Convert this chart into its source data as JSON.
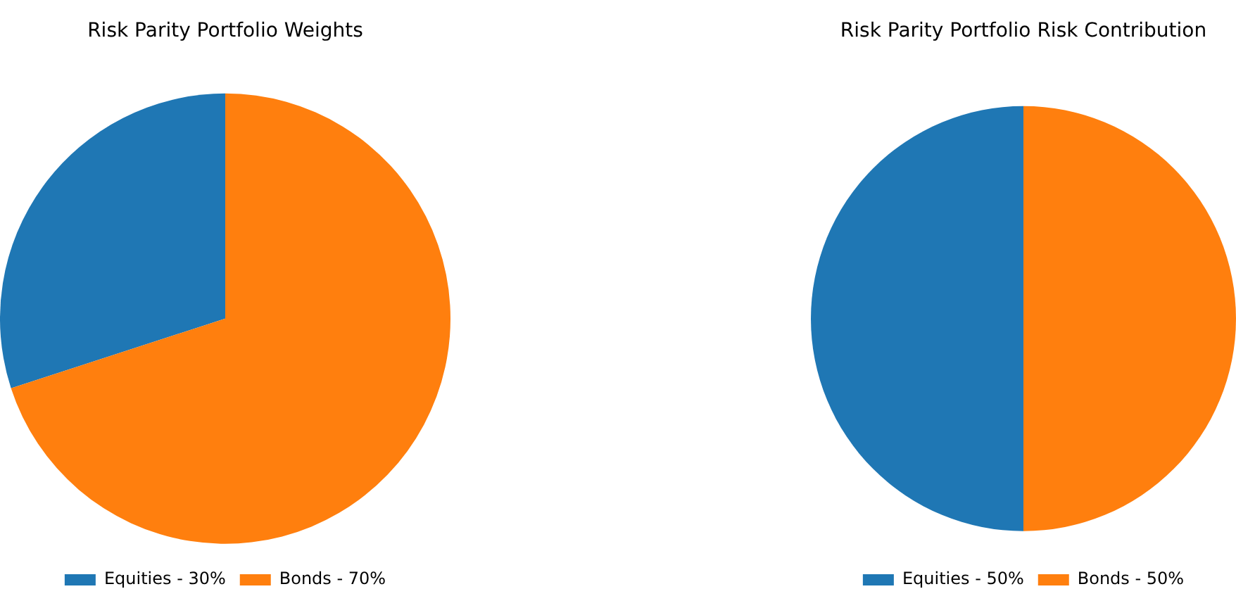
{
  "chart_data": [
    {
      "type": "pie",
      "title": "Risk Parity Portfolio Weights",
      "categories": [
        "Equities - 30%",
        "Bonds - 70%"
      ],
      "values": [
        30,
        70
      ],
      "colors": [
        "#1f77b4",
        "#ff7f0e"
      ],
      "legend": "bottom"
    },
    {
      "type": "pie",
      "title": "Risk Parity Portfolio Risk Contribution",
      "categories": [
        "Equities - 50%",
        "Bonds - 50%"
      ],
      "values": [
        50,
        50
      ],
      "colors": [
        "#1f77b4",
        "#ff7f0e"
      ],
      "legend": "bottom"
    }
  ]
}
